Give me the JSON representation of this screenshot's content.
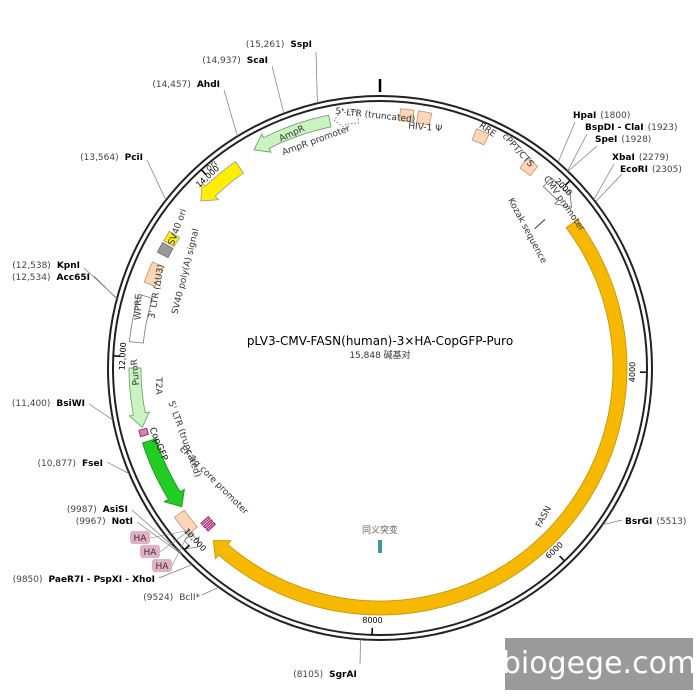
{
  "title": "pLV3-CMV-FASN(human)-3×HA-CopGFP-Puro",
  "length_label": "15,848 碱基对",
  "sites": [
    {
      "name": "SspI",
      "position": "(15,261)"
    },
    {
      "name": "ScaI",
      "position": "(14,937)"
    },
    {
      "name": "AhdI",
      "position": "(14,457)"
    },
    {
      "name": "PciI",
      "position": "(13,564)"
    },
    {
      "name": "KpnI",
      "position": "(12,538)"
    },
    {
      "name": "Acc65I",
      "position": "(12,534)"
    },
    {
      "name": "BsiWI",
      "position": "(11,400)"
    },
    {
      "name": "FseI",
      "position": "(10,877)"
    },
    {
      "name": "AsiSI",
      "position": "(9987)"
    },
    {
      "name": "NotI",
      "position": "(9967)"
    },
    {
      "name": "PaeR7I - PspXI - XhoI",
      "position": "(9850)"
    },
    {
      "name": "BclI*",
      "position": "(9524)"
    },
    {
      "name": "SgrAI",
      "position": "(8105)"
    },
    {
      "name": "BsrGI",
      "position": "(5513)"
    },
    {
      "name": "HpaI",
      "position": "(1800)"
    },
    {
      "name": "BspDI - ClaI",
      "position": "(1923)"
    },
    {
      "name": "SpeI",
      "position": "(1928)"
    },
    {
      "name": "XbaI",
      "position": "(2279)"
    },
    {
      "name": "EcoRI",
      "position": "(2305)"
    }
  ],
  "features": [
    "5' LTR (truncated)",
    "AmpR",
    "AmpR promoter",
    "HIV-1 Ψ",
    "RRE",
    "cPPT/CTS",
    "CMV promoter",
    "Kozak sequence",
    "FASN",
    "ori",
    "SV40 ori",
    "SV40 poly(A) signal",
    "3' LTR (ΔU3)",
    "WPRE",
    "PuroR",
    "T2A",
    "5' LTR (truncated)",
    "CopGFP",
    "EF-1α core promoter"
  ],
  "ha_tags": [
    "HA",
    "HA",
    "HA"
  ],
  "note": "同义突变",
  "ticks": [
    "2000",
    "4000",
    "6000",
    "8000",
    "10,000",
    "12,000",
    "14,000"
  ],
  "watermark": "biogege.com"
}
